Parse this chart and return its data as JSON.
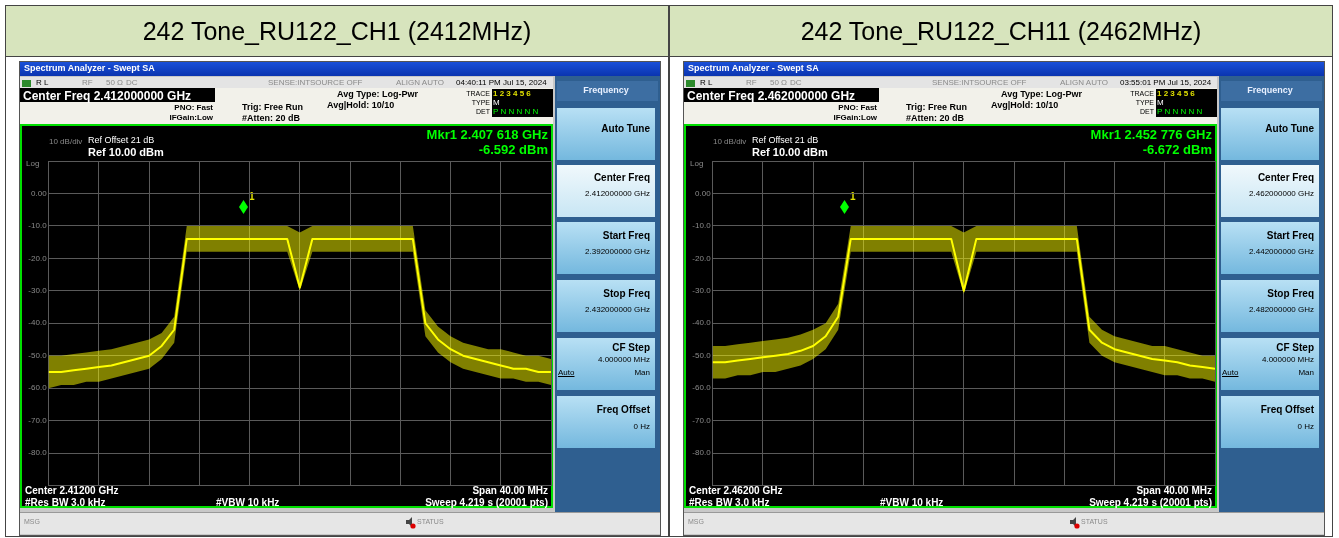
{
  "chart_data": [
    {
      "type": "line",
      "title": "242 Tone_RU122_CH1 (2412MHz)",
      "grid": true,
      "legend": false,
      "marker": "none",
      "line_style": "solid",
      "categories": [
        null,
        null,
        null,
        null,
        null,
        null,
        null,
        null,
        null,
        null,
        null,
        null,
        null,
        null,
        null,
        null,
        null,
        null,
        null,
        null,
        null,
        null,
        null,
        null,
        null,
        null,
        null,
        null,
        null,
        null,
        null,
        null,
        null,
        null,
        null,
        null,
        null,
        null,
        null,
        null,
        null
      ],
      "series": [
        {
          "color": "#ffff00",
          "values": [
            -55,
            -55,
            -54.5,
            -54,
            -53.5,
            -53,
            -52,
            -51,
            -50,
            -47,
            -42,
            -14,
            -14,
            -14,
            -14,
            -14,
            -14,
            -14,
            -14,
            -14,
            -29,
            -14,
            -14,
            -14,
            -14,
            -14,
            -14,
            -14,
            -14,
            -14,
            -40,
            -45,
            -48,
            -50,
            -51,
            -52,
            -53,
            -54,
            -54,
            -55,
            -55
          ],
          "lower": [
            -60,
            -59,
            -59,
            -58,
            -58,
            -57,
            -56,
            -55,
            -54,
            -51,
            -46,
            -18,
            -18,
            -18,
            -18,
            -18,
            -18,
            -18,
            -18,
            -18,
            -30,
            -18,
            -18,
            -18,
            -18,
            -18,
            -18,
            -18,
            -18,
            -18,
            -44,
            -49,
            -52,
            -54,
            -55,
            -56,
            -57,
            -57,
            -58,
            -58,
            -59
          ],
          "upper": [
            -50,
            -50,
            -49.5,
            -49,
            -48.5,
            -48,
            -47,
            -46,
            -45,
            -43,
            -38,
            -10,
            -10,
            -10,
            -10,
            -10,
            -10,
            -10,
            -10,
            -10,
            -12,
            -10,
            -10,
            -10,
            -10,
            -10,
            -10,
            -10,
            -10,
            -10,
            -36,
            -41,
            -44,
            -46,
            -47,
            -48,
            -48,
            -49,
            -50,
            -50,
            -51
          ]
        }
      ],
      "ylim": [
        -90,
        10
      ],
      "yticks": [
        {
          "value": 10,
          "label": null
        },
        {
          "value": 0,
          "label": "0.00"
        },
        {
          "value": -10,
          "label": "-10.0"
        },
        {
          "value": -20,
          "label": "-20.0"
        },
        {
          "value": -30,
          "label": "-30.0"
        },
        {
          "value": -40,
          "label": "-40.0"
        },
        {
          "value": -50,
          "label": "-50.0"
        },
        {
          "value": -60,
          "label": "-60.0"
        },
        {
          "value": -70,
          "label": "-70.0"
        },
        {
          "value": -80,
          "label": "-80.0"
        },
        {
          "value": -90,
          "label": null
        }
      ],
      "annotations": [
        "Spectrum Analyzer - Swept SA",
        "R L",
        "RF",
        "50 Ω",
        "DC",
        "SENSE:INT",
        "SOURCE OFF",
        "ALIGN AUTO",
        "04:40:11 PM Jul 15, 2024",
        "Center Freq 2.412000000 GHz",
        "PNO: Fast",
        "IFGain:Low",
        "Trig: Free Run",
        "#Atten: 20 dB",
        "Avg Type: Log-Pwr",
        "Avg|Hold: 10/10",
        "TRACE",
        "1 2 3 4 5 6",
        "TYPE",
        "M",
        "DET",
        "P N N N N N",
        "Ref Offset 21 dB",
        "Ref 10.00 dBm",
        "10 dB/div",
        "Log",
        "Mkr1 2.407 618 GHz",
        "-6.592 dBm",
        "Center 2.41200 GHz",
        "Span 40.00 MHz",
        "#Res BW 3.0 kHz",
        "#VBW 10 kHz",
        "Sweep  4.219 s (20001 pts)",
        "MSG",
        "STATUS",
        "Frequency",
        "Auto Tune",
        "Center Freq",
        "2.412000000 GHz",
        "Start Freq",
        "2.392000000 GHz",
        "Stop Freq",
        "2.432000000 GHz",
        "CF Step",
        "4.000000 MHz",
        "Auto",
        "Man",
        "Freq Offset",
        "0 Hz",
        "1"
      ]
    },
    {
      "type": "line",
      "title": "242 Tone_RU122_CH11 (2462MHz)",
      "grid": true,
      "legend": false,
      "marker": "none",
      "line_style": "solid",
      "categories": [
        null,
        null,
        null,
        null,
        null,
        null,
        null,
        null,
        null,
        null,
        null,
        null,
        null,
        null,
        null,
        null,
        null,
        null,
        null,
        null,
        null,
        null,
        null,
        null,
        null,
        null,
        null,
        null,
        null,
        null,
        null,
        null,
        null,
        null,
        null,
        null,
        null,
        null,
        null,
        null,
        null
      ],
      "series": [
        {
          "color": "#ffff00",
          "values": [
            -52,
            -52,
            -51.5,
            -51,
            -50.5,
            -50,
            -49.5,
            -48.5,
            -47,
            -44,
            -38,
            -14,
            -14,
            -14,
            -14,
            -14,
            -14,
            -14,
            -14,
            -14,
            -30,
            -14,
            -14,
            -14,
            -14,
            -14,
            -14,
            -14,
            -14,
            -14,
            -42,
            -46,
            -48,
            -49,
            -50,
            -51,
            -51.5,
            -52,
            -53,
            -53.5,
            -54
          ],
          "lower": [
            -57,
            -57,
            -56,
            -56,
            -55,
            -55,
            -54,
            -53,
            -51,
            -48,
            -42,
            -18,
            -18,
            -18,
            -18,
            -18,
            -18,
            -18,
            -18,
            -18,
            -31,
            -18,
            -18,
            -18,
            -18,
            -18,
            -18,
            -18,
            -18,
            -18,
            -46,
            -50,
            -52,
            -53,
            -54,
            -55,
            -56,
            -56,
            -57,
            -57,
            -58
          ],
          "upper": [
            -47,
            -47,
            -46.5,
            -46,
            -45.5,
            -45,
            -44.5,
            -43.5,
            -42,
            -40,
            -34,
            -10,
            -10,
            -10,
            -10,
            -10,
            -10,
            -10,
            -10,
            -10,
            -12,
            -10,
            -10,
            -10,
            -10,
            -10,
            -10,
            -10,
            -10,
            -10,
            -38,
            -42,
            -44,
            -45,
            -46,
            -47,
            -47,
            -48,
            -49,
            -50,
            -50
          ]
        }
      ],
      "ylim": [
        -90,
        10
      ],
      "yticks": [
        {
          "value": 10,
          "label": null
        },
        {
          "value": 0,
          "label": "0.00"
        },
        {
          "value": -10,
          "label": "-10.0"
        },
        {
          "value": -20,
          "label": "-20.0"
        },
        {
          "value": -30,
          "label": "-30.0"
        },
        {
          "value": -40,
          "label": "-40.0"
        },
        {
          "value": -50,
          "label": "-50.0"
        },
        {
          "value": -60,
          "label": "-60.0"
        },
        {
          "value": -70,
          "label": "-70.0"
        },
        {
          "value": -80,
          "label": "-80.0"
        },
        {
          "value": -90,
          "label": null
        }
      ],
      "annotations": [
        "Spectrum Analyzer - Swept SA",
        "R L",
        "RF",
        "50 Ω",
        "DC",
        "SENSE:INT",
        "SOURCE OFF",
        "ALIGN AUTO",
        "03:55:01 PM Jul 15, 2024",
        "Center Freq 2.462000000 GHz",
        "PNO: Fast",
        "IFGain:Low",
        "Trig: Free Run",
        "#Atten: 20 dB",
        "Avg Type: Log-Pwr",
        "Avg|Hold: 10/10",
        "TRACE",
        "1 2 3 4 5 6",
        "TYPE",
        "M",
        "DET",
        "P N N N N N",
        "Ref Offset 21 dB",
        "Ref 10.00 dBm",
        "10 dB/div",
        "Log",
        "Mkr1 2.452 776 GHz",
        "-6.672 dBm",
        "Center 2.46200 GHz",
        "Span 40.00 MHz",
        "#Res BW 3.0 kHz",
        "#VBW 10 kHz",
        "Sweep  4.219 s (20001 pts)",
        "MSG",
        "STATUS",
        "Frequency",
        "Auto Tune",
        "Center Freq",
        "2.462000000 GHz",
        "Start Freq",
        "2.442000000 GHz",
        "Stop Freq",
        "2.482000000 GHz",
        "CF Step",
        "4.000000 MHz",
        "Auto",
        "Man",
        "Freq Offset",
        "0 Hz",
        "1"
      ]
    }
  ]
}
